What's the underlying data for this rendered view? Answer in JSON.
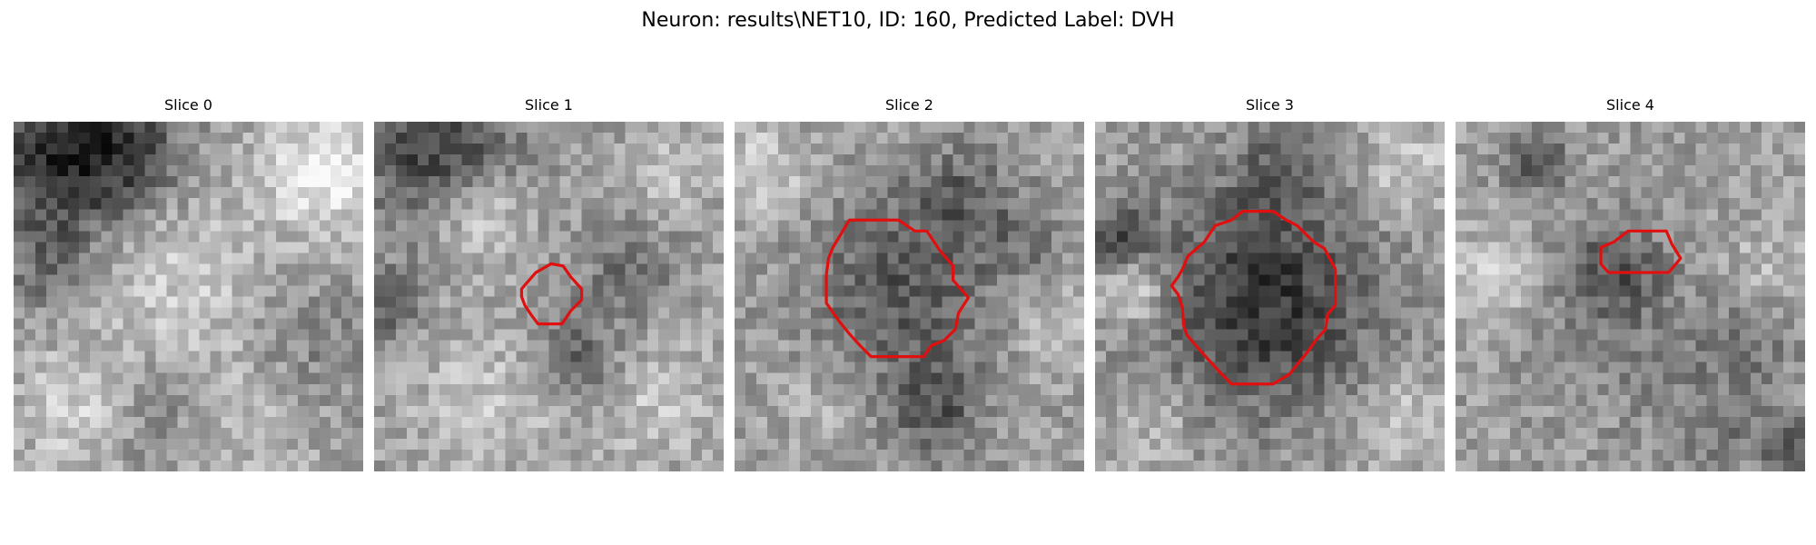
{
  "figure": {
    "title": "Neuron: results\\NET10, ID: 160, Predicted Label: DVH",
    "contour_color": "#e01010"
  },
  "panels": [
    {
      "title": "Slice 0",
      "has_contour": false
    },
    {
      "title": "Slice 1",
      "has_contour": true
    },
    {
      "title": "Slice 2",
      "has_contour": true
    },
    {
      "title": "Slice 3",
      "has_contour": true
    },
    {
      "title": "Slice 4",
      "has_contour": true
    }
  ]
}
